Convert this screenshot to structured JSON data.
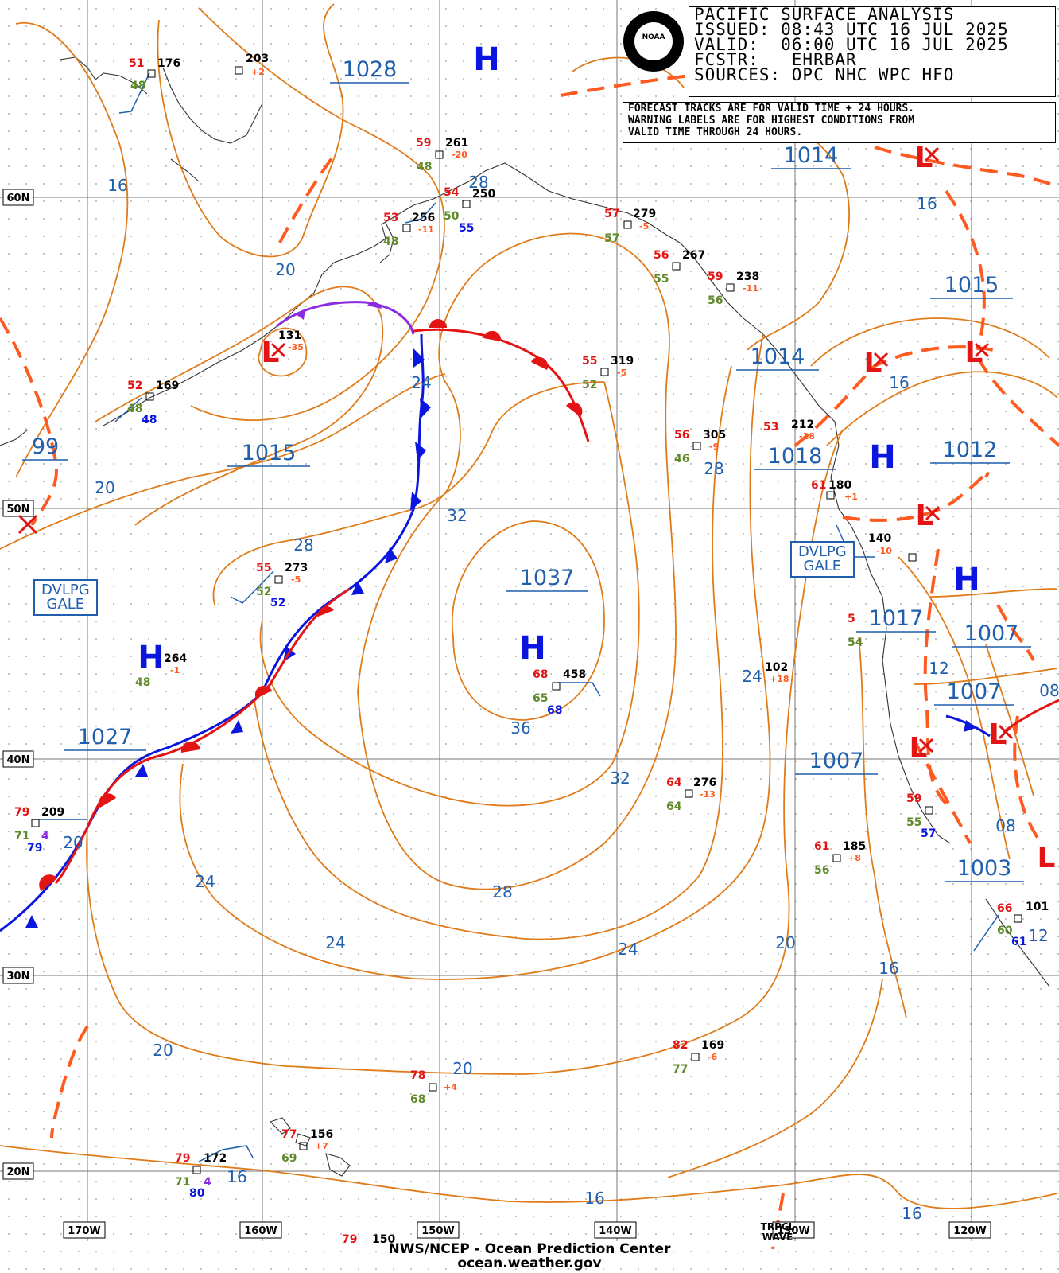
{
  "header": {
    "line1": "PACIFIC SURFACE ANALYSIS",
    "line2": "ISSUED: 08:43 UTC 16 JUL 2025",
    "line3": "VALID:  06:00 UTC 16 JUL 2025",
    "line4": "FCSTR:   EHRBAR",
    "line5": "SOURCES: OPC NHC WPC HFO"
  },
  "notice": {
    "line1": "FORECAST TRACKS ARE FOR VALID TIME + 24 HOURS.",
    "line2": "WARNING LABELS ARE FOR HIGHEST CONDITIONS FROM",
    "line3": "VALID TIME THROUGH 24 HOURS."
  },
  "logo": {
    "text": "NOAA"
  },
  "footer": {
    "line1": "NWS/NCEP - Ocean Prediction Center",
    "line2": "ocean.weather.gov"
  },
  "warnings": [
    {
      "line1": "DVLPG",
      "line2": "GALE"
    },
    {
      "line1": "DVLPG",
      "line2": "GALE"
    }
  ],
  "lat_labels": [
    "60N",
    "50N",
    "40N",
    "30N",
    "20N"
  ],
  "lon_labels": [
    "170W",
    "160W",
    "150W",
    "140W",
    "130W",
    "120W"
  ],
  "tropical_wave": {
    "line1": "TRPCL",
    "line2": "WAVE"
  },
  "centers": {
    "highs": [
      "H",
      "H",
      "H",
      "H",
      "H"
    ],
    "lows": [
      "L",
      "L",
      "L",
      "L",
      "L",
      "L",
      "L",
      "L"
    ]
  },
  "pressure_labels": [
    "1028",
    "1014",
    "1015",
    "1014",
    "1015",
    "1018",
    "1012",
    "1037",
    "1017",
    "1007",
    "1007",
    "1027",
    "1007",
    "1003",
    "99"
  ],
  "contour_labels": [
    "16",
    "20",
    "28",
    "24",
    "20",
    "28",
    "32",
    "28",
    "36",
    "24",
    "32",
    "20",
    "24",
    "28",
    "24",
    "24",
    "20",
    "16",
    "20",
    "20",
    "16",
    "16",
    "16",
    "16",
    "12",
    "08",
    "16",
    "12",
    "08"
  ],
  "stations": [
    {
      "id": "176",
      "temp": "51",
      "dew": "48"
    },
    {
      "id": "203",
      "press_change": "+2"
    },
    {
      "id": "261",
      "temp": "59",
      "dew": "48",
      "press_change": "-20"
    },
    {
      "id": "250",
      "temp": "54",
      "dew": "50",
      "sst": "55"
    },
    {
      "id": "256",
      "temp": "53",
      "dew": "48",
      "press_change": "-11"
    },
    {
      "id": "279",
      "temp": "57",
      "dew": "57",
      "press_change": "-5"
    },
    {
      "id": "267",
      "temp": "56",
      "dew": "55"
    },
    {
      "id": "238",
      "temp": "59",
      "dew": "56",
      "press_change": "-11"
    },
    {
      "id": "131",
      "press_change": "-35"
    },
    {
      "id": "169",
      "temp": "52",
      "dew": "48",
      "sst": "48"
    },
    {
      "id": "319",
      "temp": "55",
      "dew": "52",
      "press_change": "-5"
    },
    {
      "id": "305",
      "temp": "56",
      "dew": "46",
      "press_change": "-9"
    },
    {
      "id": "212",
      "temp": "53",
      "press_change": "-18"
    },
    {
      "id": "180",
      "temp": "61",
      "press_change": "+1"
    },
    {
      "id": "140",
      "press_change": "-10"
    },
    {
      "id": "273",
      "temp": "55",
      "dew": "52",
      "sst": "52",
      "press_change": "-5"
    },
    {
      "id": "264",
      "dew": "48",
      "press_change": "-1"
    },
    {
      "id": "458",
      "temp": "68",
      "dew": "65",
      "sst": "68"
    },
    {
      "id": "102",
      "press_change": "+18"
    },
    {
      "id": "209",
      "temp": "79",
      "dew": "71",
      "sst": "79",
      "vis": "4"
    },
    {
      "id": "276",
      "temp": "64",
      "dew": "64",
      "press_change": "-13"
    },
    {
      "id": "185",
      "temp": "61",
      "dew": "56",
      "press_change": "+8"
    },
    {
      "id": "101",
      "temp": "66",
      "dew": "60",
      "sst": "61"
    },
    {
      "id": "169",
      "temp": "82",
      "dew": "77",
      "press_change": "-6"
    },
    {
      "id": "",
      "temp": "78",
      "dew": "68",
      "press_change": "+4"
    },
    {
      "id": "156",
      "temp": "77",
      "dew": "69",
      "press_change": "+7"
    },
    {
      "id": "172",
      "temp": "79",
      "dew": "71",
      "sst": "80",
      "vis": "4"
    },
    {
      "id": "150",
      "temp": "79"
    },
    {
      "id": "",
      "temp": "59",
      "dew": "55",
      "sst": "57"
    },
    {
      "id": "",
      "temp": "5",
      "dew": "54"
    }
  ],
  "colors": {
    "isobar": "#e07b1a",
    "trough": "#ff5a1f",
    "cold_front": "#0a16e0",
    "warm_front": "#e41414",
    "occluded": "#8a2be2",
    "high": "#0a16e0",
    "low": "#e41414",
    "label": "#1f5fad",
    "grid": "#777777",
    "coast": "#333333"
  }
}
